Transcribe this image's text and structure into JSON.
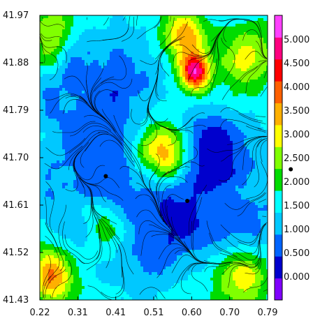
{
  "chart_data": {
    "type": "heatmap",
    "title": "",
    "xlabel": "",
    "ylabel": "",
    "xlim": [
      0.22,
      0.79
    ],
    "ylim": [
      41.43,
      41.97
    ],
    "x_tick_labels": [
      "0.22",
      "0.31",
      "0.41",
      "0.51",
      "0.60",
      "0.70",
      "0.79"
    ],
    "y_tick_labels": [
      "41.97",
      "41.88",
      "41.79",
      "41.70",
      "41.61",
      "41.52",
      "41.43"
    ],
    "colorbar": {
      "range": [
        -0.5,
        5.5
      ],
      "tick_labels": [
        "0.000",
        "0.500",
        "1.000",
        "1.500",
        "2.000",
        "2.500",
        "3.000",
        "3.500",
        "4.000",
        "4.500",
        "5.000"
      ],
      "colors": [
        "#8000ff",
        "#0000cd",
        "#0064ff",
        "#00c8ff",
        "#00ffff",
        "#00dc00",
        "#80ff00",
        "#ffff00",
        "#ffb000",
        "#ff6000",
        "#ff0000",
        "#ff0080",
        "#ff40ff"
      ]
    },
    "markers": [
      {
        "x": 0.385,
        "y": 41.665
      },
      {
        "x": 0.589,
        "y": 41.618
      },
      {
        "x": 0.848,
        "y": 41.678
      }
    ],
    "grid": false,
    "legend": "colorbar-right"
  }
}
